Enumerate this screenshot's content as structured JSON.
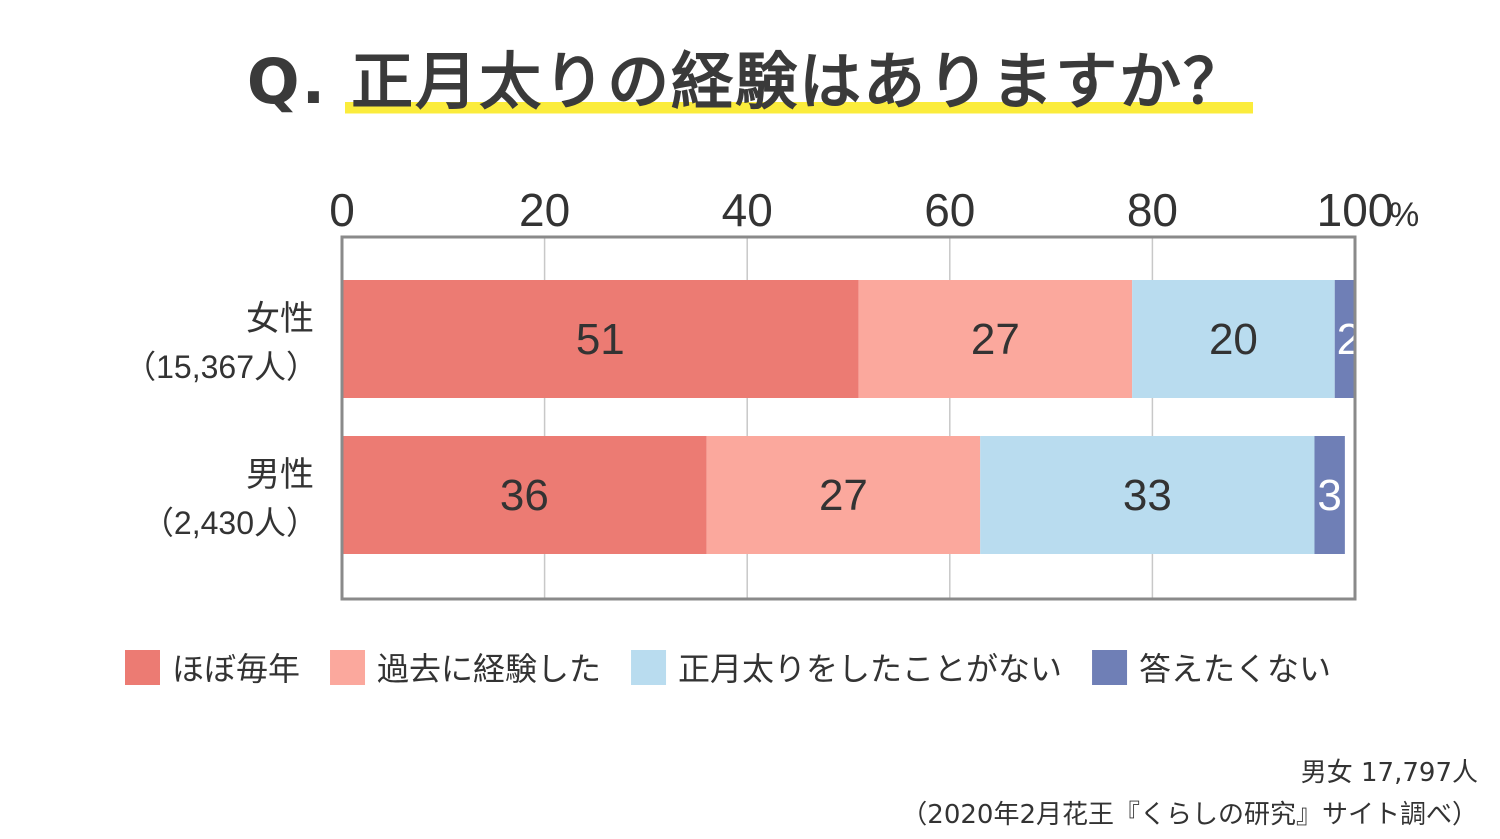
{
  "title": {
    "q": "Q.",
    "text": "正月太りの経験はありますか？"
  },
  "chart_data": {
    "type": "bar",
    "orientation": "horizontal",
    "stacked": true,
    "x_ticks": [
      "0",
      "20",
      "40",
      "60",
      "80",
      "100"
    ],
    "x_unit": "%",
    "xlim": [
      0,
      100
    ],
    "categories": [
      {
        "label": "女性",
        "sublabel": "（15,367人）"
      },
      {
        "label": "男性",
        "sublabel": "（2,430人）"
      }
    ],
    "series": [
      {
        "name": "ほぼ毎年",
        "color": "#ec7b73",
        "label_color": "#333333",
        "values": [
          51,
          36
        ]
      },
      {
        "name": "過去に経験した",
        "color": "#fba89d",
        "label_color": "#333333",
        "values": [
          27,
          27
        ]
      },
      {
        "name": "正月太りをしたことがない",
        "color": "#b9dcef",
        "label_color": "#333333",
        "values": [
          20,
          33
        ]
      },
      {
        "name": "答えたくない",
        "color": "#6f7fb6",
        "label_color": "#ffffff",
        "values": [
          2,
          3
        ]
      }
    ],
    "legend_position": "bottom",
    "grid": true
  },
  "source": {
    "sample": "男女 17,797人",
    "citation": "（2020年2月花王『くらしの研究』サイト調べ）"
  }
}
